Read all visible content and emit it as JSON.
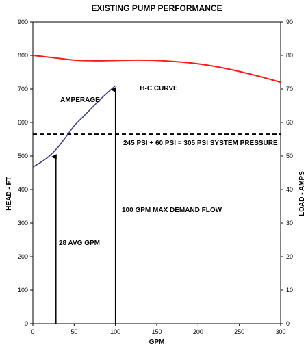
{
  "chart_data": {
    "type": "line",
    "title": "EXISTING PUMP PERFORMANCE",
    "xlabel": "GPM",
    "ylabel_left": "HEAD - FT",
    "ylabel_right": "LOAD - AMPS",
    "xlim": [
      0,
      300
    ],
    "ylim_left": [
      0,
      900
    ],
    "ylim_right": [
      0,
      90
    ],
    "x_ticks": [
      "0",
      "50",
      "100",
      "150",
      "200",
      "250",
      "300"
    ],
    "y_left_ticks": [
      "0",
      "100",
      "200",
      "300",
      "400",
      "500",
      "600",
      "700",
      "800",
      "900"
    ],
    "y_right_ticks": [
      "0",
      "10",
      "20",
      "30",
      "40",
      "50",
      "60",
      "70",
      "80",
      "90"
    ],
    "grid": false,
    "series": [
      {
        "name": "H-C CURVE",
        "color": "#ff1a1a",
        "axis": "left",
        "x": [
          0,
          25,
          50,
          75,
          100,
          125,
          150,
          175,
          200,
          225,
          250,
          275,
          300
        ],
        "y": [
          800,
          793,
          786,
          784,
          785,
          786,
          785,
          781,
          775,
          765,
          752,
          737,
          720
        ]
      },
      {
        "name": "AMPERAGE",
        "color": "#3f3f8f",
        "axis": "left",
        "x": [
          0,
          10,
          20,
          30,
          40,
          50,
          60,
          70,
          80,
          90,
          100
        ],
        "y": [
          467,
          482,
          500,
          525,
          557,
          590,
          615,
          640,
          665,
          688,
          710
        ]
      }
    ],
    "reference_line": {
      "label": "245 PSI + 60 PSI = 305 PSI    SYSTEM PRESSURE",
      "y": 565,
      "style": "dashed",
      "color": "#000000"
    },
    "markers": [
      {
        "label": "28 AVG GPM",
        "x": 28,
        "y_top": 510
      },
      {
        "label": "100 GPM MAX DEMAND FLOW",
        "x": 100,
        "y_top": 710
      }
    ]
  }
}
